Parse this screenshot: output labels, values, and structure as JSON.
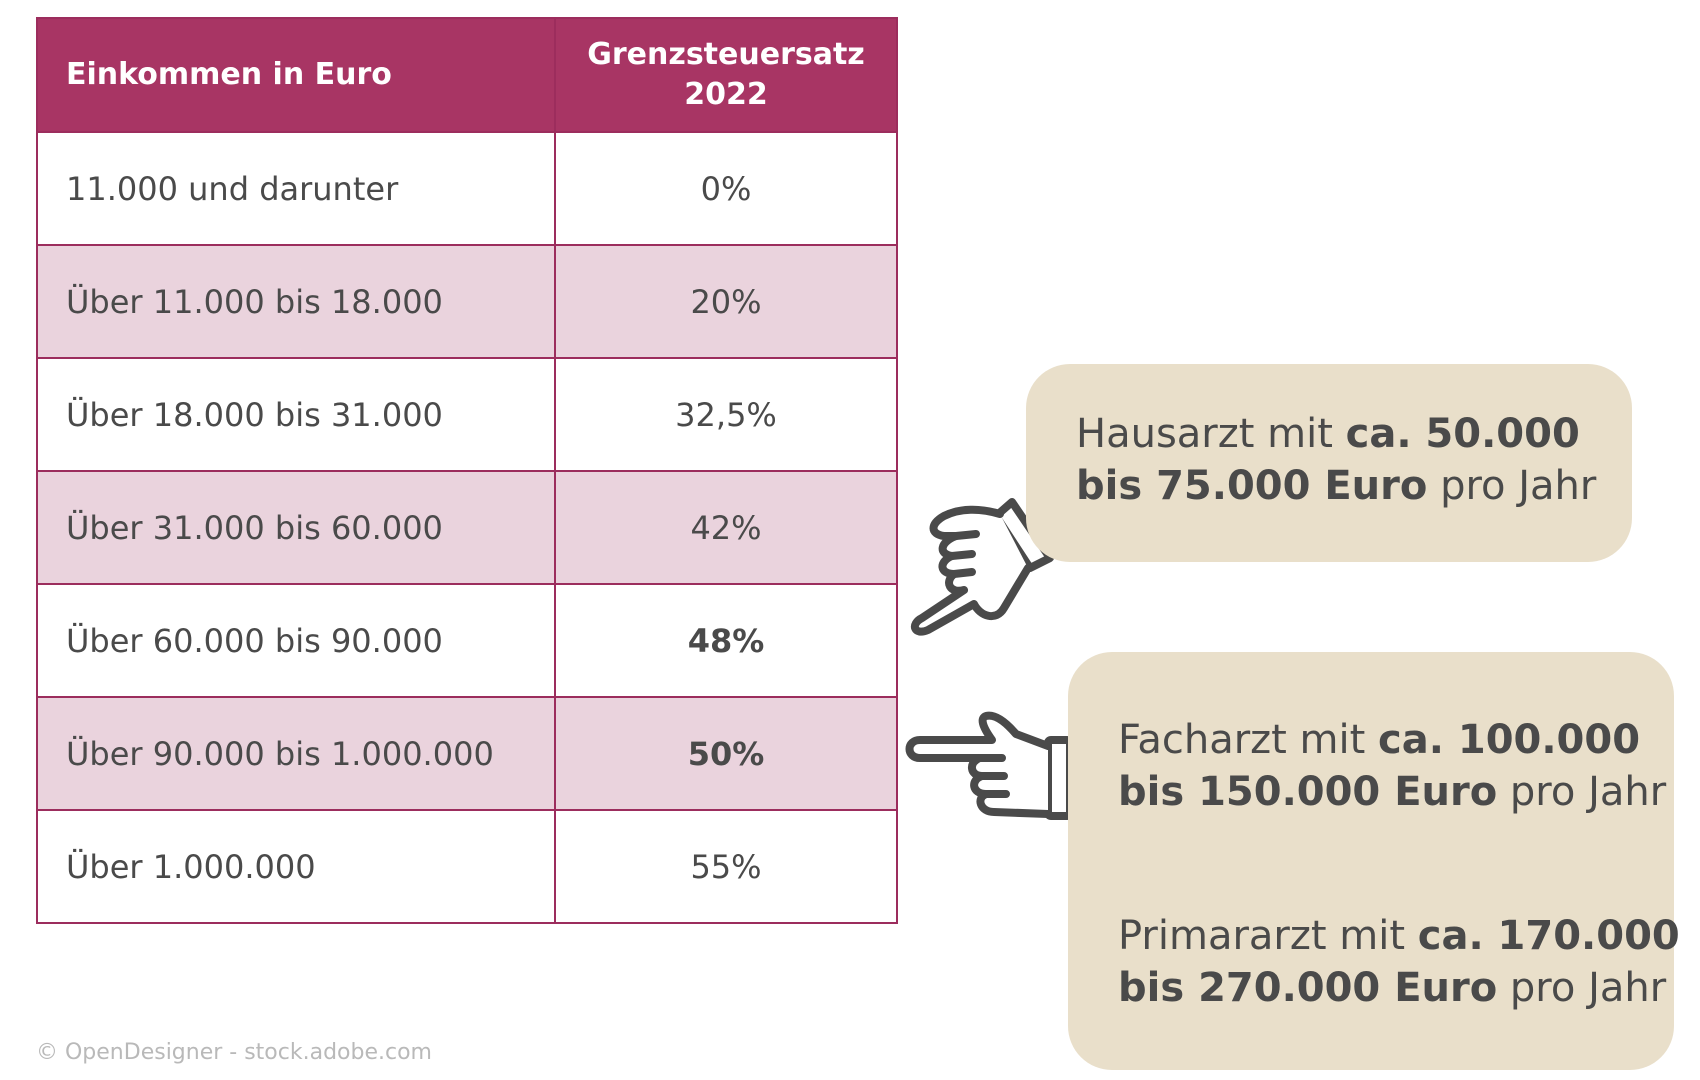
{
  "table": {
    "header": {
      "income": "Einkommen in Euro",
      "rate_line1": "Grenzsteuersatz",
      "rate_line2": "2022"
    },
    "rows": [
      {
        "income": "11.000 und darunter",
        "rate": "0%"
      },
      {
        "income": "Über 11.000 bis 18.000",
        "rate": "20%"
      },
      {
        "income": "Über 18.000 bis 31.000",
        "rate": "32,5%"
      },
      {
        "income": "Über 31.000 bis 60.000",
        "rate": "42%"
      },
      {
        "income": "Über 60.000 bis 90.000",
        "rate": "48%"
      },
      {
        "income": "Über 90.000 bis 1.000.000",
        "rate": "50%"
      },
      {
        "income": "Über 1.000.000",
        "rate": "55%"
      }
    ],
    "colors": {
      "header": "#a83564",
      "stripe": "#ead3dd",
      "border": "#9c2d5d"
    }
  },
  "callouts": {
    "hausarzt": {
      "l1_plain": "Hausarzt mit ",
      "l1_bold": "ca. 50.000",
      "l2_bold": "bis 75.000 Euro",
      "l2_plain": " pro Jahr"
    },
    "facharzt": {
      "l1_plain": "Facharzt mit ",
      "l1_bold": "ca. 100.000",
      "l2_bold": "bis 150.000 Euro",
      "l2_plain": " pro Jahr"
    },
    "primararzt": {
      "l1_plain": "Primararzt mit ",
      "l1_bold": "ca. 170.000",
      "l2_bold": "bis 270.000 Euro",
      "l2_plain": " pro Jahr"
    },
    "color": "#e9dfca"
  },
  "icons": {
    "hand_1": "pointing-hand-down-left-icon",
    "hand_2": "pointing-hand-left-icon"
  },
  "credit": "© OpenDesigner - stock.adobe.com"
}
